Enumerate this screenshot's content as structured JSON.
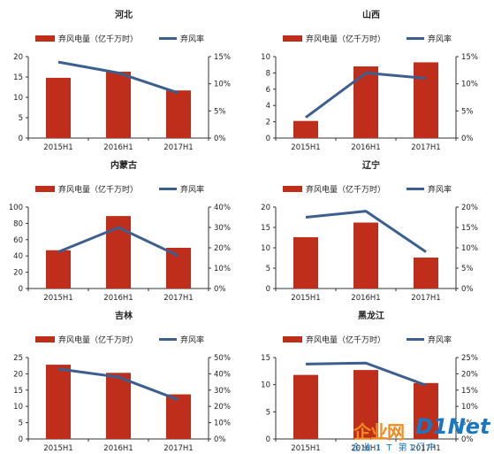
{
  "legend": {
    "bar_label": "弃风电量（亿千万时）",
    "line_label": "弃风率"
  },
  "colors": {
    "bar": "#bf2e1a",
    "line": "#3d5f8f"
  },
  "watermark": {
    "brand_cn": "企业网",
    "brand_logo": "D1Net",
    "sub": "企业 I T 第1门户"
  },
  "chart_data": [
    {
      "type": "bar+line",
      "title": "河北",
      "categories": [
        "2015H1",
        "2016H1",
        "2017H1"
      ],
      "series": [
        {
          "name": "弃风电量（亿千万时）",
          "type": "bar",
          "axis": "left",
          "values": [
            14.8,
            16.3,
            11.7
          ]
        },
        {
          "name": "弃风率",
          "type": "line",
          "axis": "right",
          "values": [
            14,
            12,
            8.3
          ]
        }
      ],
      "ylim_left": [
        0,
        20
      ],
      "yticks_left": [
        0,
        5,
        10,
        15,
        20
      ],
      "ylim_right": [
        0,
        15
      ],
      "yticks_right": [
        "0%",
        "5%",
        "10%",
        "15%"
      ]
    },
    {
      "type": "bar+line",
      "title": "山西",
      "categories": [
        "2015H1",
        "2016H1",
        "2017H1"
      ],
      "series": [
        {
          "name": "弃风电量（亿千万时）",
          "type": "bar",
          "axis": "left",
          "values": [
            2.1,
            8.8,
            9.3
          ]
        },
        {
          "name": "弃风率",
          "type": "line",
          "axis": "right",
          "values": [
            3.8,
            12,
            11
          ]
        }
      ],
      "ylim_left": [
        0,
        10
      ],
      "yticks_left": [
        0,
        2,
        4,
        6,
        8,
        10
      ],
      "ylim_right": [
        0,
        15
      ],
      "yticks_right": [
        "0%",
        "5%",
        "10%",
        "15%"
      ]
    },
    {
      "type": "bar+line",
      "title": "内蒙古",
      "categories": [
        "2015H1",
        "2016H1",
        "2017H1"
      ],
      "series": [
        {
          "name": "弃风电量（亿千万时）",
          "type": "bar",
          "axis": "left",
          "values": [
            47,
            89,
            50
          ]
        },
        {
          "name": "弃风率",
          "type": "line",
          "axis": "right",
          "values": [
            18,
            30,
            16
          ]
        }
      ],
      "ylim_left": [
        0,
        100
      ],
      "yticks_left": [
        0,
        20,
        40,
        60,
        80,
        100
      ],
      "ylim_right": [
        0,
        40
      ],
      "yticks_right": [
        "0%",
        "10%",
        "20%",
        "30%",
        "40%"
      ]
    },
    {
      "type": "bar+line",
      "title": "辽宁",
      "categories": [
        "2015H1",
        "2016H1",
        "2017H1"
      ],
      "series": [
        {
          "name": "弃风电量（亿千万时）",
          "type": "bar",
          "axis": "left",
          "values": [
            12.6,
            16.2,
            7.6
          ]
        },
        {
          "name": "弃风率",
          "type": "line",
          "axis": "right",
          "values": [
            17.5,
            19,
            9
          ]
        }
      ],
      "ylim_left": [
        0,
        20
      ],
      "yticks_left": [
        0,
        5,
        10,
        15,
        20
      ],
      "ylim_right": [
        0,
        20
      ],
      "yticks_right": [
        "0%",
        "5%",
        "10%",
        "15%",
        "20%"
      ]
    },
    {
      "type": "bar+line",
      "title": "吉林",
      "categories": [
        "2015H1",
        "2016H1",
        "2017H1"
      ],
      "series": [
        {
          "name": "弃风电量（亿千万时）",
          "type": "bar",
          "axis": "left",
          "values": [
            22.8,
            20.3,
            13.7
          ]
        },
        {
          "name": "弃风率",
          "type": "line",
          "axis": "right",
          "values": [
            43,
            38,
            24
          ]
        }
      ],
      "ylim_left": [
        0,
        25
      ],
      "yticks_left": [
        0,
        5,
        10,
        15,
        20,
        25
      ],
      "ylim_right": [
        0,
        50
      ],
      "yticks_right": [
        "0%",
        "10%",
        "20%",
        "30%",
        "40%",
        "50%"
      ]
    },
    {
      "type": "bar+line",
      "title": "黑龙江",
      "categories": [
        "2015H1",
        "2016H1",
        "2017H1"
      ],
      "series": [
        {
          "name": "弃风电量（亿千万时）",
          "type": "bar",
          "axis": "left",
          "values": [
            11.8,
            12.7,
            10.3
          ]
        },
        {
          "name": "弃风率",
          "type": "line",
          "axis": "right",
          "values": [
            23,
            23.3,
            16.5
          ]
        }
      ],
      "ylim_left": [
        0,
        15
      ],
      "yticks_left": [
        0,
        5,
        10,
        15
      ],
      "ylim_right": [
        0,
        25
      ],
      "yticks_right": [
        "0%",
        "5%",
        "10%",
        "15%",
        "20%",
        "25%"
      ]
    }
  ]
}
